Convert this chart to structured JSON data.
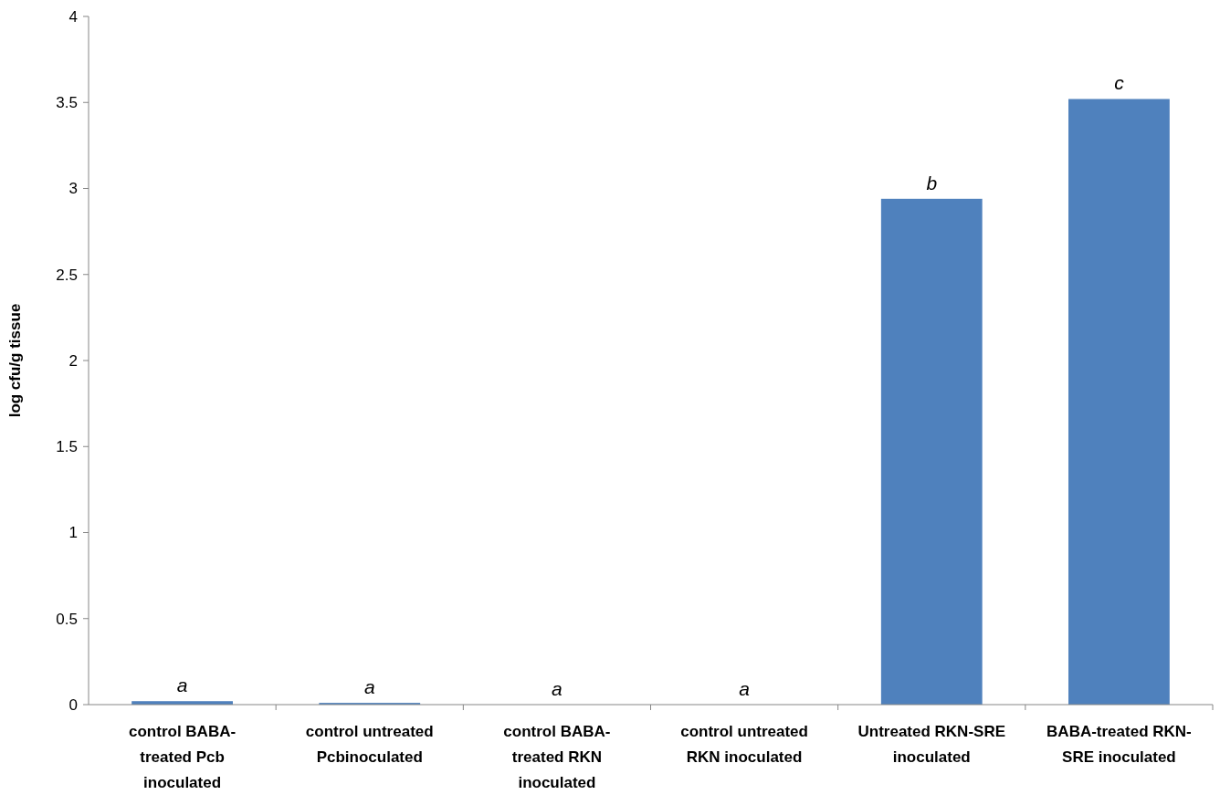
{
  "chart_data": {
    "type": "bar",
    "ylabel": "log cfu/g tissue",
    "categories": [
      "control BABA-treated Pcb inoculated",
      "control untreated Pcbinoculated",
      "control BABA-treated RKN inoculated",
      "control untreated RKN inoculated",
      "Untreated RKN-SRE inoculated",
      "BABA-treated RKN-SRE inoculated"
    ],
    "values": [
      0.02,
      0.01,
      0,
      0,
      2.94,
      3.52
    ],
    "color": "#4f81bd",
    "ylim": [
      0,
      4
    ],
    "yticks": [
      0,
      0.5,
      1,
      1.5,
      2,
      2.5,
      3,
      3.5,
      4
    ],
    "annotations": [
      {
        "text": "a",
        "x": "control BABA-treated Pcb inoculated",
        "y": 0.02
      },
      {
        "text": "a",
        "x": "control untreated Pcbinoculated",
        "y": 0.01
      },
      {
        "text": "a",
        "x": "control BABA-treated RKN inoculated",
        "y": 0
      },
      {
        "text": "a",
        "x": "control untreated RKN inoculated",
        "y": 0
      },
      {
        "text": "b",
        "x": "Untreated RKN-SRE inoculated",
        "y": 2.94
      },
      {
        "text": "c",
        "x": "BABA-treated RKN-SRE inoculated",
        "y": 3.52
      }
    ],
    "grid": false
  }
}
